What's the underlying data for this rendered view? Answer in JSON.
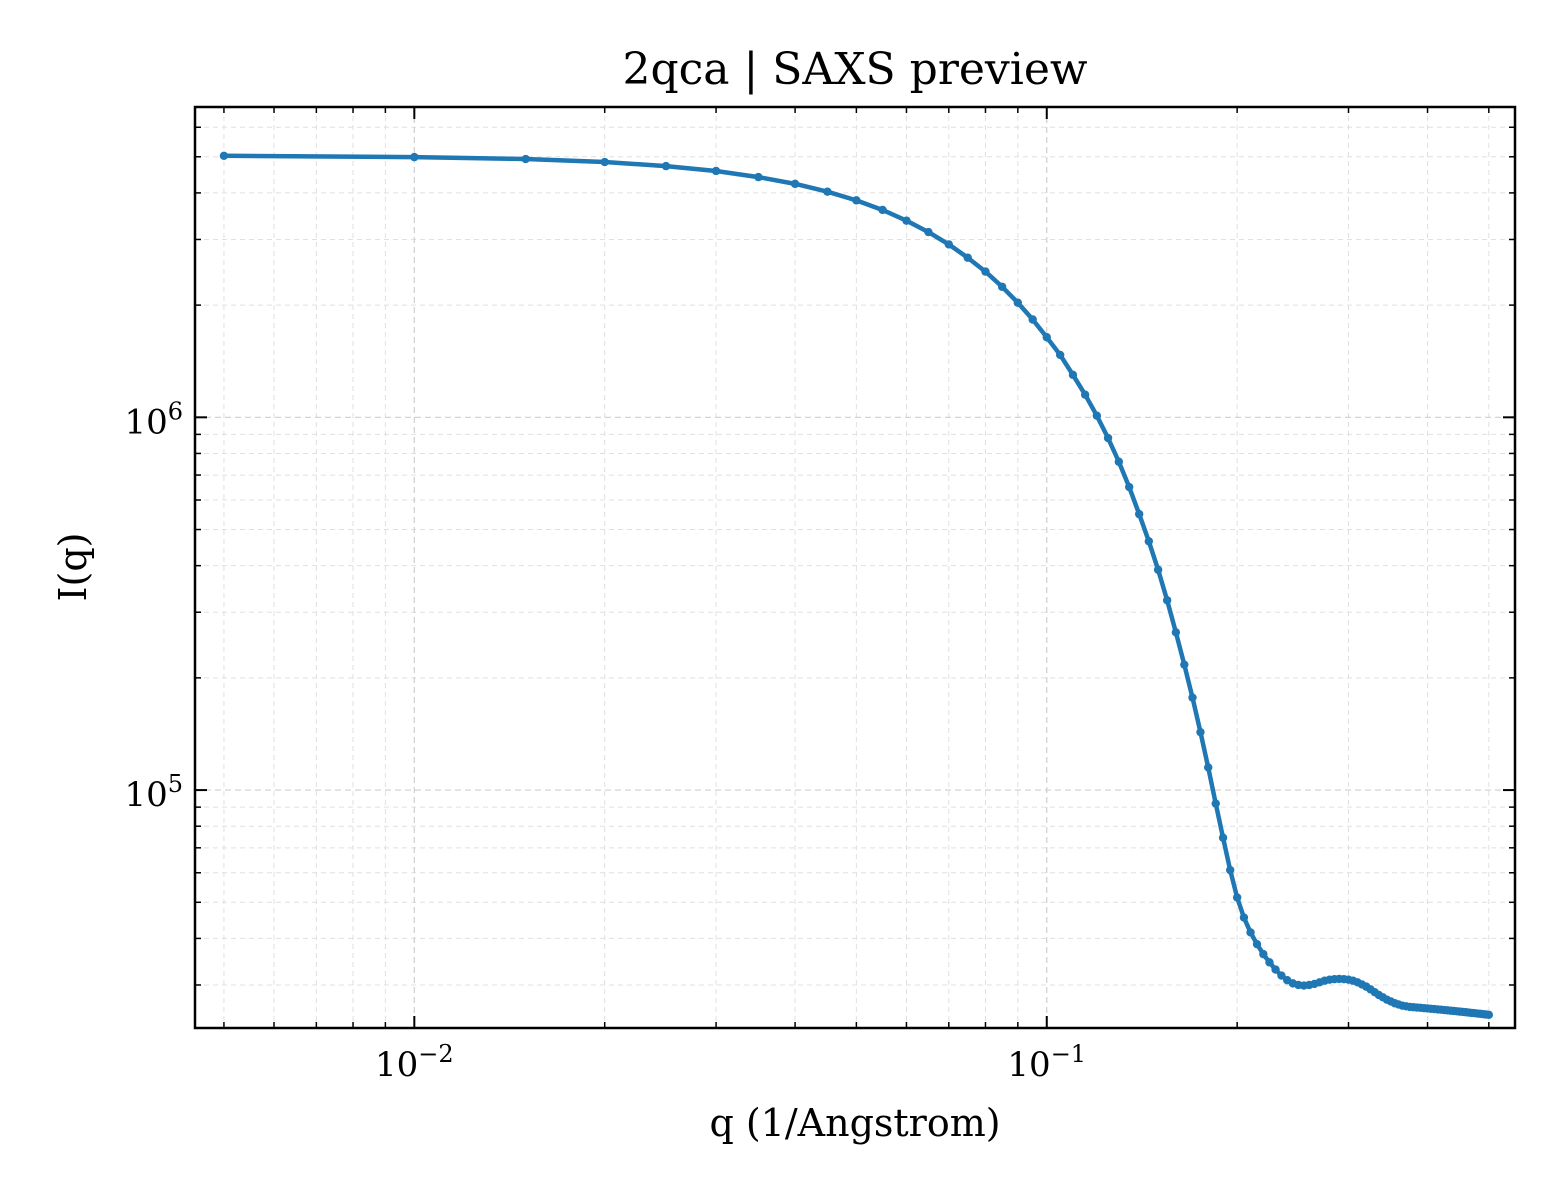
{
  "chart_data": {
    "type": "line",
    "title": "2qca | SAXS preview",
    "xlabel": "q (1/Angstrom)",
    "ylabel": "I(q)",
    "xscale": "log",
    "yscale": "log",
    "xlim": [
      0.0045,
      0.55
    ],
    "ylim": [
      23000,
      6800000
    ],
    "x_ticks": [
      {
        "value": 0.01,
        "base": "10",
        "exp": "−2"
      },
      {
        "value": 0.1,
        "base": "10",
        "exp": "−1"
      }
    ],
    "y_ticks": [
      {
        "value": 100000,
        "base": "10",
        "exp": "5"
      },
      {
        "value": 1000000,
        "base": "10",
        "exp": "6"
      }
    ],
    "grid": true,
    "line_color": "#1f77b4",
    "series": [
      {
        "x": [
          0.005,
          0.01,
          0.015,
          0.02,
          0.025,
          0.03,
          0.035,
          0.04,
          0.045,
          0.05,
          0.055,
          0.06,
          0.065,
          0.07,
          0.075,
          0.08,
          0.085,
          0.09,
          0.095,
          0.1,
          0.105,
          0.11,
          0.115,
          0.12,
          0.125,
          0.13,
          0.135,
          0.14,
          0.145,
          0.15,
          0.155,
          0.16,
          0.165,
          0.17,
          0.175,
          0.18,
          0.185,
          0.19,
          0.195,
          0.2,
          0.205,
          0.21,
          0.215,
          0.22,
          0.225,
          0.23,
          0.235,
          0.24,
          0.245,
          0.25,
          0.255,
          0.26,
          0.265,
          0.27,
          0.275,
          0.28,
          0.285,
          0.29,
          0.295,
          0.3,
          0.305,
          0.31,
          0.315,
          0.32,
          0.325,
          0.33,
          0.335,
          0.34,
          0.345,
          0.35,
          0.355,
          0.36,
          0.365,
          0.37,
          0.375,
          0.38,
          0.385,
          0.39,
          0.395,
          0.4,
          0.405,
          0.41,
          0.415,
          0.42,
          0.425,
          0.43,
          0.435,
          0.44,
          0.445,
          0.45,
          0.455,
          0.46,
          0.465,
          0.47,
          0.475,
          0.48,
          0.485,
          0.49,
          0.495,
          0.5
        ],
        "y": [
          5030000,
          4990000,
          4930000,
          4840000,
          4720000,
          4580000,
          4410000,
          4230000,
          4030000,
          3820000,
          3600000,
          3370000,
          3140000,
          2910000,
          2680000,
          2460000,
          2240000,
          2030000,
          1830000,
          1640000,
          1470000,
          1300000,
          1150000,
          1010000,
          880000,
          760000,
          650000,
          550000,
          465000,
          390000,
          323000,
          265000,
          217000,
          177000,
          143000,
          115000,
          92000,
          74500,
          61000,
          51500,
          45500,
          41500,
          38600,
          36300,
          34500,
          33000,
          31800,
          30900,
          30300,
          30000,
          29900,
          30000,
          30200,
          30500,
          30800,
          31000,
          31100,
          31150,
          31100,
          31000,
          30800,
          30500,
          30100,
          29700,
          29200,
          28700,
          28200,
          27800,
          27400,
          27100,
          26800,
          26600,
          26400,
          26300,
          26200,
          26150,
          26100,
          26050,
          26000,
          25950,
          25900,
          25850,
          25800,
          25750,
          25700,
          25650,
          25600,
          25550,
          25500,
          25450,
          25400,
          25350,
          25300,
          25250,
          25200,
          25150,
          25100,
          25050,
          25000,
          24950
        ]
      }
    ]
  }
}
